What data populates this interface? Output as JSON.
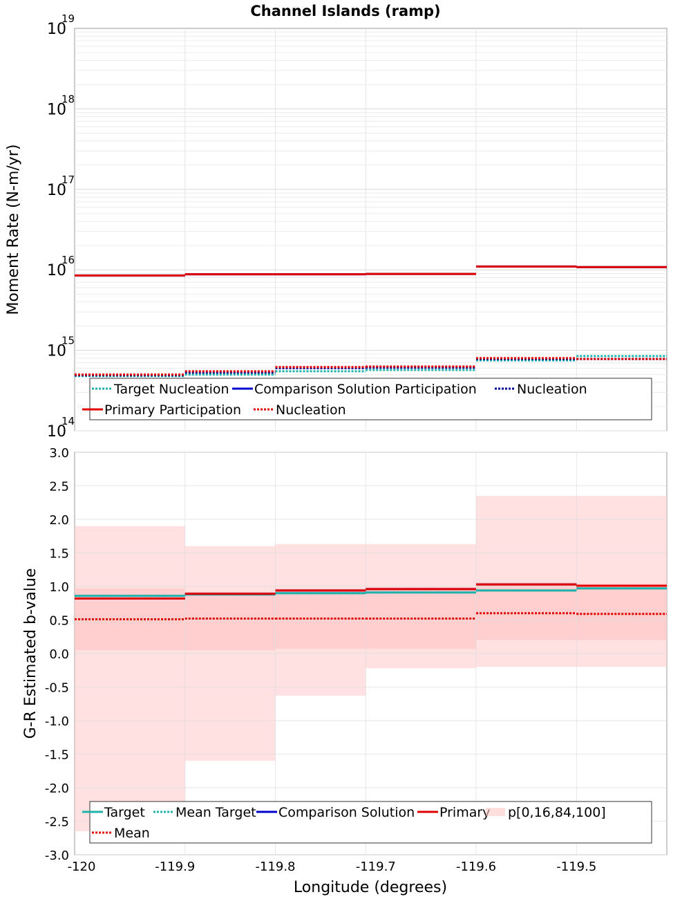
{
  "title": "Channel Islands (ramp)",
  "chart_data": [
    {
      "type": "line",
      "panel": "moment-rate",
      "step": true,
      "ylabel": "Moment Rate (N-m/yr)",
      "yscale": "log",
      "ylim": [
        100000000000000.0,
        1e+19
      ],
      "y_ticks": [
        {
          "base": "10",
          "exp": "14"
        },
        {
          "base": "10",
          "exp": "15"
        },
        {
          "base": "10",
          "exp": "16"
        },
        {
          "base": "10",
          "exp": "17"
        },
        {
          "base": "10",
          "exp": "18"
        },
        {
          "base": "10",
          "exp": "19"
        }
      ],
      "grid": true,
      "legend_placement": "bottom",
      "x_edges": [
        -120.0,
        -119.89,
        -119.8,
        -119.71,
        -119.6,
        -119.5,
        -119.41
      ],
      "series": [
        {
          "name": "Target Nucleation",
          "color": "#20b2aa",
          "dash": "dotted",
          "values": [
            480000000000000.0,
            500000000000000.0,
            550000000000000.0,
            570000000000000.0,
            750000000000000.0,
            850000000000000.0
          ]
        },
        {
          "name": "Comparison Solution Participation",
          "color": "#0000cc",
          "dash": "solid",
          "values": [
            8500000000000000.0,
            8800000000000000.0,
            8800000000000000.0,
            8900000000000000.0,
            1.1e+16,
            1.08e+16
          ]
        },
        {
          "name": "Nucleation",
          "color": "#000099",
          "dash": "dotted",
          "values": [
            490000000000000.0,
            530000000000000.0,
            600000000000000.0,
            610000000000000.0,
            780000000000000.0,
            780000000000000.0
          ]
        },
        {
          "name": "Primary Participation",
          "color": "#e00000",
          "dash": "solid",
          "values": [
            8500000000000000.0,
            8800000000000000.0,
            8800000000000000.0,
            8900000000000000.0,
            1.1e+16,
            1.08e+16
          ]
        },
        {
          "name": "Nucleation",
          "color": "#e00000",
          "dash": "dotted",
          "values": [
            500000000000000.0,
            550000000000000.0,
            620000000000000.0,
            630000000000000.0,
            800000000000000.0,
            780000000000000.0
          ]
        }
      ]
    },
    {
      "type": "line",
      "panel": "b-value",
      "step": true,
      "xlabel": "Longitude (degrees)",
      "ylabel": "G-R Estimated b-value",
      "ylim": [
        -3.0,
        3.0
      ],
      "xlim": [
        -120.0,
        -119.41
      ],
      "y_ticks": [
        "-3.0",
        "-2.5",
        "-2.0",
        "-1.5",
        "-1.0",
        "-0.5",
        "0.0",
        "0.5",
        "1.0",
        "1.5",
        "2.0",
        "2.5",
        "3.0"
      ],
      "x_ticks": [
        "-120",
        "-119.9",
        "-119.8",
        "-119.7",
        "-119.6",
        "-119.5"
      ],
      "grid": true,
      "legend_placement": "bottom",
      "x_edges": [
        -120.0,
        -119.89,
        -119.8,
        -119.71,
        -119.6,
        -119.5,
        -119.41
      ],
      "band_name": "p[0,16,84,100]",
      "band_color": "#ffc8c8",
      "bands_outer": [
        [
          -2.65,
          1.9
        ],
        [
          -1.6,
          1.6
        ],
        [
          -0.63,
          1.63
        ],
        [
          -0.22,
          1.63
        ],
        [
          -0.2,
          2.35
        ],
        [
          -0.2,
          2.35
        ]
      ],
      "bands_inner": [
        [
          0.05,
          0.97
        ],
        [
          0.05,
          0.92
        ],
        [
          0.07,
          0.97
        ],
        [
          0.07,
          0.99
        ],
        [
          0.2,
          1.06
        ],
        [
          0.2,
          1.04
        ]
      ],
      "series": [
        {
          "name": "Target",
          "color": "#20b2aa",
          "dash": "solid",
          "values": [
            0.86,
            0.88,
            0.9,
            0.91,
            0.94,
            0.97
          ]
        },
        {
          "name": "Mean Target",
          "color": "#20b2aa",
          "dash": "dotted",
          "values": [
            0.86,
            0.88,
            0.9,
            0.91,
            0.94,
            0.97
          ]
        },
        {
          "name": "Comparison Solution",
          "color": "#0000cc",
          "dash": "solid",
          "values": [
            0.82,
            0.89,
            0.94,
            0.96,
            1.03,
            1.01
          ]
        },
        {
          "name": "Primary",
          "color": "#e00000",
          "dash": "solid",
          "values": [
            0.82,
            0.89,
            0.94,
            0.96,
            1.03,
            1.01
          ]
        },
        {
          "name": "Mean",
          "color": "#e00000",
          "dash": "dotted",
          "values": [
            0.51,
            0.52,
            0.52,
            0.52,
            0.6,
            0.59
          ]
        }
      ]
    }
  ]
}
